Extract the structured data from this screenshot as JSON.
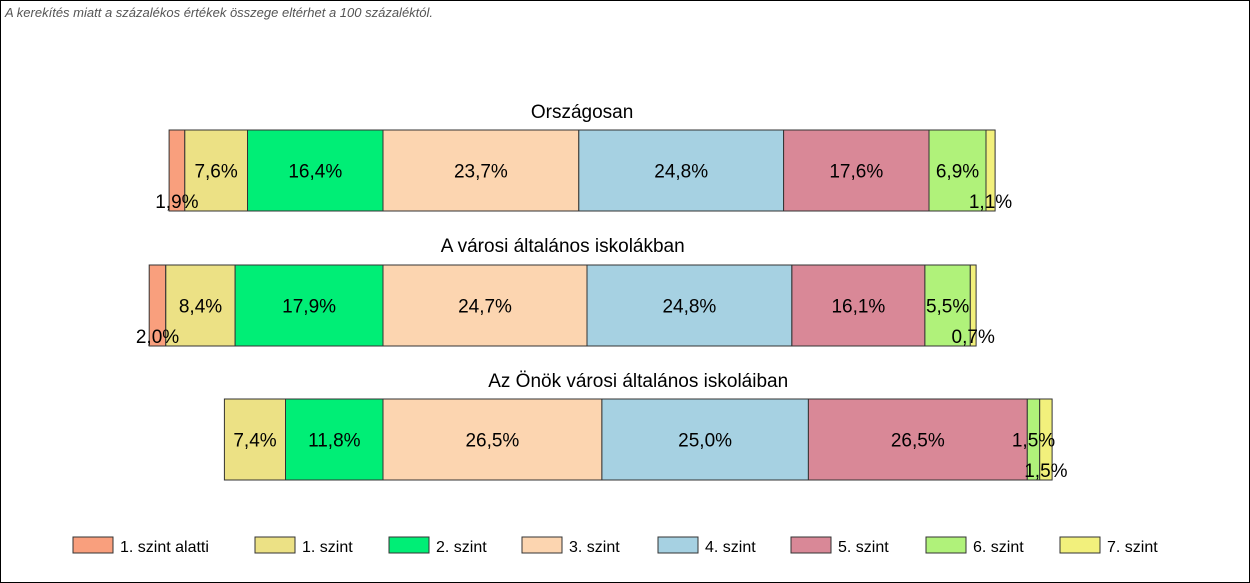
{
  "note": "A kerekítés miatt a  százalékos értékek összege eltérhet a 100 százaléktól.",
  "colors": {
    "1. szint alatti": "#f99f7d",
    "1. szint": "#ece185",
    "2. szint": "#00ee76",
    "3. szint": "#fcd5b0",
    "4. szint": "#a6d1e2",
    "5. szint": "#d98897",
    "6. szint": "#b0f27a",
    "7. szint": "#f2f07c"
  },
  "chart_data": {
    "type": "bar",
    "orientation": "horizontal",
    "stacked": true,
    "levels": [
      "1. szint alatti",
      "1. szint",
      "2. szint",
      "3. szint",
      "4. szint",
      "5. szint",
      "6. szint",
      "7. szint"
    ],
    "legend_position": "bottom",
    "groups": [
      {
        "title": "Országosan",
        "values": [
          1.9,
          7.6,
          16.4,
          23.7,
          24.8,
          17.6,
          6.9,
          1.1
        ],
        "labels": [
          "1,9%",
          "7,6%",
          "16,4%",
          "23,7%",
          "24,8%",
          "17,6%",
          "6,9%",
          "1,1%"
        ]
      },
      {
        "title": "A városi általános iskolákban",
        "values": [
          2.0,
          8.4,
          17.9,
          24.7,
          24.8,
          16.1,
          5.5,
          0.7
        ],
        "labels": [
          "2,0%",
          "8,4%",
          "17,9%",
          "24,7%",
          "24,8%",
          "16,1%",
          "5,5%",
          "0,7%"
        ]
      },
      {
        "title": "Az Önök városi általános iskoláiban",
        "values": [
          0,
          7.4,
          11.8,
          26.5,
          25.0,
          26.5,
          1.5,
          1.5
        ],
        "labels": [
          "",
          "7,4%",
          "11,8%",
          "26,5%",
          "25,0%",
          "26,5%",
          "1,5%",
          "1,5%"
        ]
      }
    ]
  }
}
